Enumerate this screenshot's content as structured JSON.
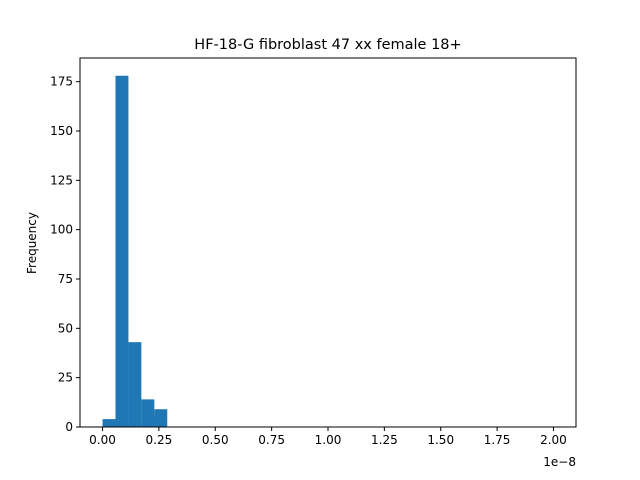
{
  "chart_data": {
    "type": "bar",
    "title": "HF-18-G fibroblast 47 xx female 18+",
    "xlabel": "",
    "ylabel": "Frequency",
    "x_offset_label": "1e−8",
    "x_scale": 1e-08,
    "bin_width": 0.0574,
    "series": [
      {
        "x": [
          0.0,
          0.0574,
          0.1148,
          0.1722,
          0.2296
        ],
        "values": [
          4,
          178,
          43,
          14,
          9
        ]
      },
      {
        "x": [
          0.2066
        ],
        "values": [
          5
        ]
      }
    ],
    "xlim": [
      -0.1,
      2.1
    ],
    "ylim": [
      0,
      187
    ],
    "xticks": [
      0.0,
      0.25,
      0.5,
      0.75,
      1.0,
      1.25,
      1.5,
      1.75,
      2.0
    ],
    "xtick_labels": [
      "0.00",
      "0.25",
      "0.50",
      "0.75",
      "1.00",
      "1.25",
      "1.50",
      "1.75",
      "2.00"
    ],
    "yticks": [
      0,
      25,
      50,
      75,
      100,
      125,
      150,
      175
    ],
    "ytick_labels": [
      "0",
      "25",
      "50",
      "75",
      "100",
      "125",
      "150",
      "175"
    ],
    "grid": false,
    "bar_color": "#1f77b4"
  }
}
